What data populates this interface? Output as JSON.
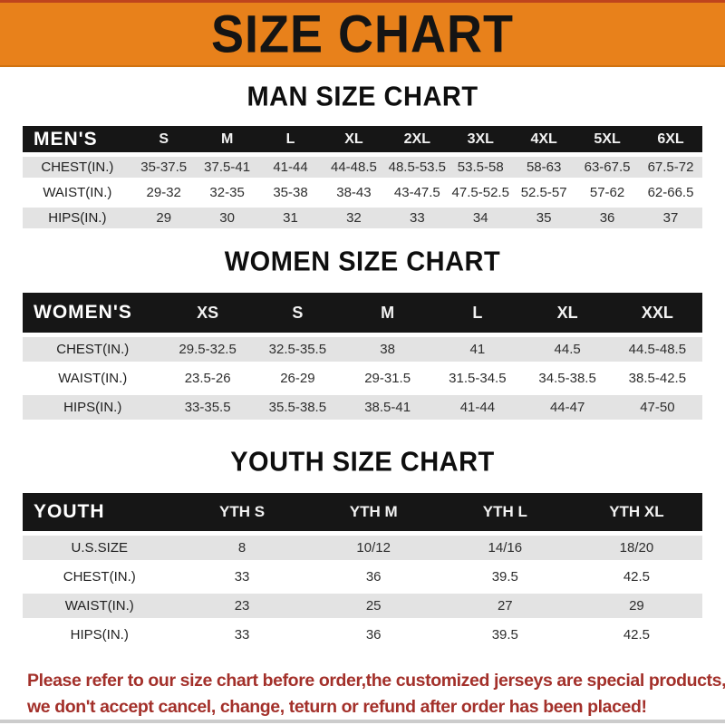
{
  "banner": {
    "title": "SIZE CHART",
    "bg_color": "#e8811b",
    "text_color": "#141414"
  },
  "men": {
    "title": "MAN SIZE CHART",
    "header": [
      "MEN'S",
      "S",
      "M",
      "L",
      "XL",
      "2XL",
      "3XL",
      "4XL",
      "5XL",
      "6XL"
    ],
    "rows": [
      [
        "CHEST(IN.)",
        "35-37.5",
        "37.5-41",
        "41-44",
        "44-48.5",
        "48.5-53.5",
        "53.5-58",
        "58-63",
        "63-67.5",
        "67.5-72"
      ],
      [
        "WAIST(IN.)",
        "29-32",
        "32-35",
        "35-38",
        "38-43",
        "43-47.5",
        "47.5-52.5",
        "52.5-57",
        "57-62",
        "62-66.5"
      ],
      [
        "HIPS(IN.)",
        "29",
        "30",
        "31",
        "32",
        "33",
        "34",
        "35",
        "36",
        "37"
      ]
    ]
  },
  "women": {
    "title": "WOMEN SIZE CHART",
    "header": [
      "WOMEN'S",
      "XS",
      "S",
      "M",
      "L",
      "XL",
      "XXL"
    ],
    "rows": [
      [
        "CHEST(IN.)",
        "29.5-32.5",
        "32.5-35.5",
        "38",
        "41",
        "44.5",
        "44.5-48.5"
      ],
      [
        "WAIST(IN.)",
        "23.5-26",
        "26-29",
        "29-31.5",
        "31.5-34.5",
        "34.5-38.5",
        "38.5-42.5"
      ],
      [
        "HIPS(IN.)",
        "33-35.5",
        "35.5-38.5",
        "38.5-41",
        "41-44",
        "44-47",
        "47-50"
      ]
    ]
  },
  "youth": {
    "title": "YOUTH SIZE CHART",
    "header": [
      "YOUTH",
      "YTH S",
      "YTH M",
      "YTH L",
      "YTH XL"
    ],
    "rows": [
      [
        "U.S.SIZE",
        "8",
        "10/12",
        "14/16",
        "18/20"
      ],
      [
        "CHEST(IN.)",
        "33",
        "36",
        "39.5",
        "42.5"
      ],
      [
        "WAIST(IN.)",
        "23",
        "25",
        "27",
        "29"
      ],
      [
        "HIPS(IN.)",
        "33",
        "36",
        "39.5",
        "42.5"
      ]
    ]
  },
  "note": {
    "line1": "Please refer to our size chart before order,the customized jerseys are special products,",
    "line2": "we don't accept cancel, change, teturn or refund after order has been placed!",
    "color": "#a3302a"
  }
}
